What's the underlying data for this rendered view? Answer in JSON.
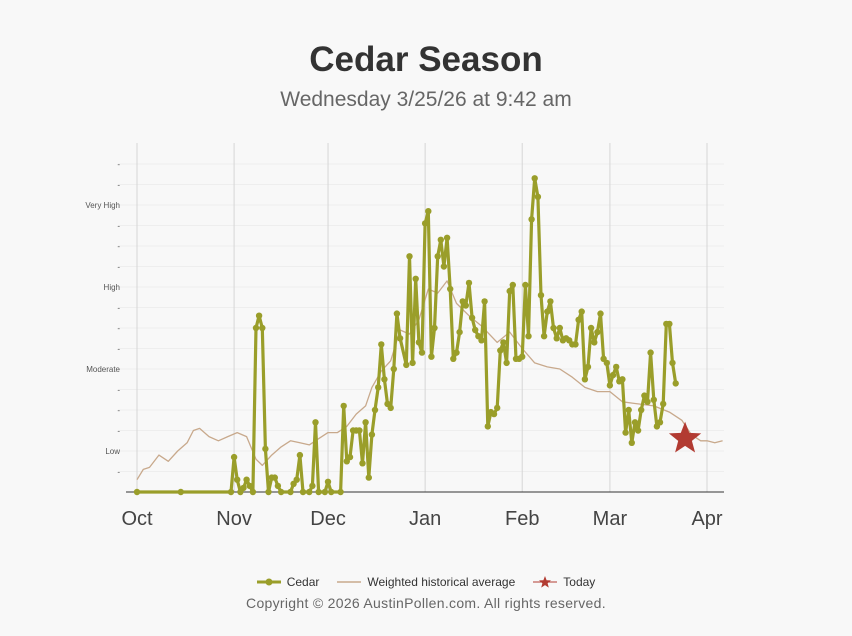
{
  "chart_data": {
    "type": "line",
    "title": "Cedar Season",
    "subtitle": "Wednesday 3/25/26 at 9:42 am",
    "x_range": [
      "2025-10-01",
      "2026-04-01"
    ],
    "x_ticks": [
      {
        "label": "Oct",
        "date": "2025-10-01"
      },
      {
        "label": "Nov",
        "date": "2025-11-01"
      },
      {
        "label": "Dec",
        "date": "2025-12-01"
      },
      {
        "label": "Jan",
        "date": "2026-01-01"
      },
      {
        "label": "Feb",
        "date": "2026-02-01"
      },
      {
        "label": "Mar",
        "date": "2026-03-01"
      },
      {
        "label": "Apr",
        "date": "2026-04-01"
      }
    ],
    "y_axis": {
      "min": 0,
      "max": 16,
      "levels": [
        {
          "label": "Low",
          "value": 2
        },
        {
          "label": "Moderate",
          "value": 6
        },
        {
          "label": "High",
          "value": 10
        },
        {
          "label": "Very High",
          "value": 14
        }
      ],
      "minor_tick_label": "-",
      "grid": true
    },
    "series": [
      {
        "name": "Cedar",
        "color": "#9a9e2a",
        "points": [
          [
            "2025-10-01",
            0
          ],
          [
            "2025-10-15",
            0
          ],
          [
            "2025-10-31",
            0
          ],
          [
            "2025-11-01",
            1.7
          ],
          [
            "2025-11-02",
            0.6
          ],
          [
            "2025-11-03",
            0
          ],
          [
            "2025-11-04",
            0.2
          ],
          [
            "2025-11-05",
            0.6
          ],
          [
            "2025-11-06",
            0.3
          ],
          [
            "2025-11-07",
            0
          ],
          [
            "2025-11-08",
            8
          ],
          [
            "2025-11-09",
            8.6
          ],
          [
            "2025-11-10",
            8
          ],
          [
            "2025-11-11",
            2.1
          ],
          [
            "2025-11-12",
            0
          ],
          [
            "2025-11-13",
            0.7
          ],
          [
            "2025-11-14",
            0.7
          ],
          [
            "2025-11-15",
            0.3
          ],
          [
            "2025-11-16",
            0
          ],
          [
            "2025-11-19",
            0
          ],
          [
            "2025-11-20",
            0.4
          ],
          [
            "2025-11-21",
            0.6
          ],
          [
            "2025-11-22",
            1.8
          ],
          [
            "2025-11-23",
            0
          ],
          [
            "2025-11-25",
            0
          ],
          [
            "2025-11-26",
            0.3
          ],
          [
            "2025-11-27",
            3.4
          ],
          [
            "2025-11-28",
            0
          ],
          [
            "2025-11-30",
            0
          ],
          [
            "2025-12-01",
            0.5
          ],
          [
            "2025-12-02",
            0
          ],
          [
            "2025-12-05",
            0
          ],
          [
            "2025-12-06",
            4.2
          ],
          [
            "2025-12-07",
            1.5
          ],
          [
            "2025-12-08",
            1.7
          ],
          [
            "2025-12-09",
            3
          ],
          [
            "2025-12-10",
            3
          ],
          [
            "2025-12-11",
            3
          ],
          [
            "2025-12-12",
            1.4
          ],
          [
            "2025-12-13",
            3.4
          ],
          [
            "2025-12-14",
            0.7
          ],
          [
            "2025-12-15",
            2.8
          ],
          [
            "2025-12-16",
            4
          ],
          [
            "2025-12-17",
            5.1
          ],
          [
            "2025-12-18",
            7.2
          ],
          [
            "2025-12-19",
            5.5
          ],
          [
            "2025-12-20",
            4.3
          ],
          [
            "2025-12-21",
            4.1
          ],
          [
            "2025-12-22",
            6
          ],
          [
            "2025-12-23",
            8.7
          ],
          [
            "2025-12-24",
            7.5
          ],
          [
            "2025-12-26",
            6.2
          ],
          [
            "2025-12-27",
            11.5
          ],
          [
            "2025-12-28",
            6.3
          ],
          [
            "2025-12-29",
            10.4
          ],
          [
            "2025-12-30",
            7.3
          ],
          [
            "2025-12-31",
            6.8
          ],
          [
            "2026-01-01",
            13.1
          ],
          [
            "2026-01-02",
            13.7
          ],
          [
            "2026-01-03",
            6.6
          ],
          [
            "2026-01-04",
            8
          ],
          [
            "2026-01-05",
            11.5
          ],
          [
            "2026-01-06",
            12.3
          ],
          [
            "2026-01-07",
            11
          ],
          [
            "2026-01-08",
            12.4
          ],
          [
            "2026-01-09",
            9.9
          ],
          [
            "2026-01-10",
            6.5
          ],
          [
            "2026-01-11",
            6.8
          ],
          [
            "2026-01-12",
            7.8
          ],
          [
            "2026-01-13",
            9.3
          ],
          [
            "2026-01-14",
            9.1
          ],
          [
            "2026-01-15",
            10.2
          ],
          [
            "2026-01-16",
            8.5
          ],
          [
            "2026-01-17",
            7.9
          ],
          [
            "2026-01-18",
            7.6
          ],
          [
            "2026-01-19",
            7.4
          ],
          [
            "2026-01-20",
            9.3
          ],
          [
            "2026-01-21",
            3.2
          ],
          [
            "2026-01-22",
            3.9
          ],
          [
            "2026-01-23",
            3.8
          ],
          [
            "2026-01-24",
            4.1
          ],
          [
            "2026-01-25",
            6.9
          ],
          [
            "2026-01-26",
            7.3
          ],
          [
            "2026-01-27",
            6.3
          ],
          [
            "2026-01-28",
            9.8
          ],
          [
            "2026-01-29",
            10.1
          ],
          [
            "2026-01-30",
            6.5
          ],
          [
            "2026-01-31",
            6.5
          ],
          [
            "2026-02-01",
            6.6
          ],
          [
            "2026-02-02",
            10.1
          ],
          [
            "2026-02-03",
            7.6
          ],
          [
            "2026-02-04",
            13.3
          ],
          [
            "2026-02-05",
            15.3
          ],
          [
            "2026-02-06",
            14.4
          ],
          [
            "2026-02-07",
            9.6
          ],
          [
            "2026-02-08",
            7.6
          ],
          [
            "2026-02-09",
            8.8
          ],
          [
            "2026-02-10",
            9.3
          ],
          [
            "2026-02-11",
            8
          ],
          [
            "2026-02-12",
            7.5
          ],
          [
            "2026-02-13",
            8
          ],
          [
            "2026-02-14",
            7.4
          ],
          [
            "2026-02-15",
            7.5
          ],
          [
            "2026-02-16",
            7.4
          ],
          [
            "2026-02-17",
            7.2
          ],
          [
            "2026-02-18",
            7.2
          ],
          [
            "2026-02-19",
            8.4
          ],
          [
            "2026-02-20",
            8.8
          ],
          [
            "2026-02-21",
            5.5
          ],
          [
            "2026-02-22",
            6.1
          ],
          [
            "2026-02-23",
            8
          ],
          [
            "2026-02-24",
            7.3
          ],
          [
            "2026-02-25",
            7.8
          ],
          [
            "2026-02-26",
            8.7
          ],
          [
            "2026-02-27",
            6.5
          ],
          [
            "2026-02-28",
            6.3
          ],
          [
            "2026-03-01",
            5.2
          ],
          [
            "2026-03-02",
            5.7
          ],
          [
            "2026-03-03",
            6.1
          ],
          [
            "2026-03-04",
            5.4
          ],
          [
            "2026-03-05",
            5.5
          ],
          [
            "2026-03-06",
            2.9
          ],
          [
            "2026-03-07",
            4
          ],
          [
            "2026-03-08",
            2.4
          ],
          [
            "2026-03-09",
            3.4
          ],
          [
            "2026-03-10",
            3
          ],
          [
            "2026-03-11",
            4
          ],
          [
            "2026-03-12",
            4.7
          ],
          [
            "2026-03-13",
            4.4
          ],
          [
            "2026-03-14",
            6.8
          ],
          [
            "2026-03-15",
            4.5
          ],
          [
            "2026-03-16",
            3.2
          ],
          [
            "2026-03-17",
            3.4
          ],
          [
            "2026-03-18",
            4.3
          ],
          [
            "2026-03-19",
            8.2
          ],
          [
            "2026-03-20",
            8.2
          ],
          [
            "2026-03-21",
            6.3
          ],
          [
            "2026-03-22",
            5.3
          ]
        ]
      },
      {
        "name": "Weighted historical average",
        "color": "#c8a98c",
        "points": [
          [
            "2025-10-01",
            0.6
          ],
          [
            "2025-10-03",
            1.1
          ],
          [
            "2025-10-05",
            1.2
          ],
          [
            "2025-10-08",
            1.8
          ],
          [
            "2025-10-11",
            1.5
          ],
          [
            "2025-10-14",
            2
          ],
          [
            "2025-10-17",
            2.4
          ],
          [
            "2025-10-19",
            3
          ],
          [
            "2025-10-21",
            3.1
          ],
          [
            "2025-10-24",
            2.7
          ],
          [
            "2025-10-27",
            2.5
          ],
          [
            "2025-10-30",
            2.7
          ],
          [
            "2025-11-02",
            2.9
          ],
          [
            "2025-11-05",
            2.7
          ],
          [
            "2025-11-08",
            1.6
          ],
          [
            "2025-11-10",
            1.3
          ],
          [
            "2025-11-13",
            1.8
          ],
          [
            "2025-11-16",
            2.2
          ],
          [
            "2025-11-19",
            2.5
          ],
          [
            "2025-11-22",
            2.4
          ],
          [
            "2025-11-25",
            2.3
          ],
          [
            "2025-11-28",
            2.6
          ],
          [
            "2025-12-01",
            2.9
          ],
          [
            "2025-12-04",
            2.9
          ],
          [
            "2025-12-07",
            3.2
          ],
          [
            "2025-12-10",
            3.8
          ],
          [
            "2025-12-13",
            4.2
          ],
          [
            "2025-12-15",
            5.1
          ],
          [
            "2025-12-18",
            5.9
          ],
          [
            "2025-12-21",
            6.4
          ],
          [
            "2025-12-24",
            7.9
          ],
          [
            "2025-12-27",
            7.7
          ],
          [
            "2025-12-30",
            8.4
          ],
          [
            "2026-01-02",
            9.9
          ],
          [
            "2026-01-05",
            9.7
          ],
          [
            "2026-01-08",
            10.3
          ],
          [
            "2026-01-11",
            9.2
          ],
          [
            "2026-01-15",
            8.6
          ],
          [
            "2026-01-19",
            8.1
          ],
          [
            "2026-01-24",
            7.3
          ],
          [
            "2026-01-28",
            7.8
          ],
          [
            "2026-02-01",
            7
          ],
          [
            "2026-02-05",
            6.3
          ],
          [
            "2026-02-09",
            6.1
          ],
          [
            "2026-02-13",
            6
          ],
          [
            "2026-02-17",
            5.6
          ],
          [
            "2026-02-21",
            5.1
          ],
          [
            "2026-02-25",
            4.9
          ],
          [
            "2026-03-01",
            4.9
          ],
          [
            "2026-03-05",
            4.4
          ],
          [
            "2026-03-10",
            4.3
          ],
          [
            "2026-03-15",
            4.2
          ],
          [
            "2026-03-20",
            3.9
          ],
          [
            "2026-03-24",
            3.5
          ],
          [
            "2026-03-27",
            2.8
          ],
          [
            "2026-03-30",
            2.5
          ],
          [
            "2026-04-01",
            2.5
          ],
          [
            "2026-04-03",
            2.4
          ],
          [
            "2026-04-05",
            2.5
          ]
        ]
      },
      {
        "name": "Today",
        "color": "#b23b32",
        "marker": "star",
        "points": [
          [
            "2026-03-25",
            2.6
          ]
        ]
      }
    ]
  },
  "copyright": "Copyright © 2026 AustinPollen.com.  All rights reserved."
}
